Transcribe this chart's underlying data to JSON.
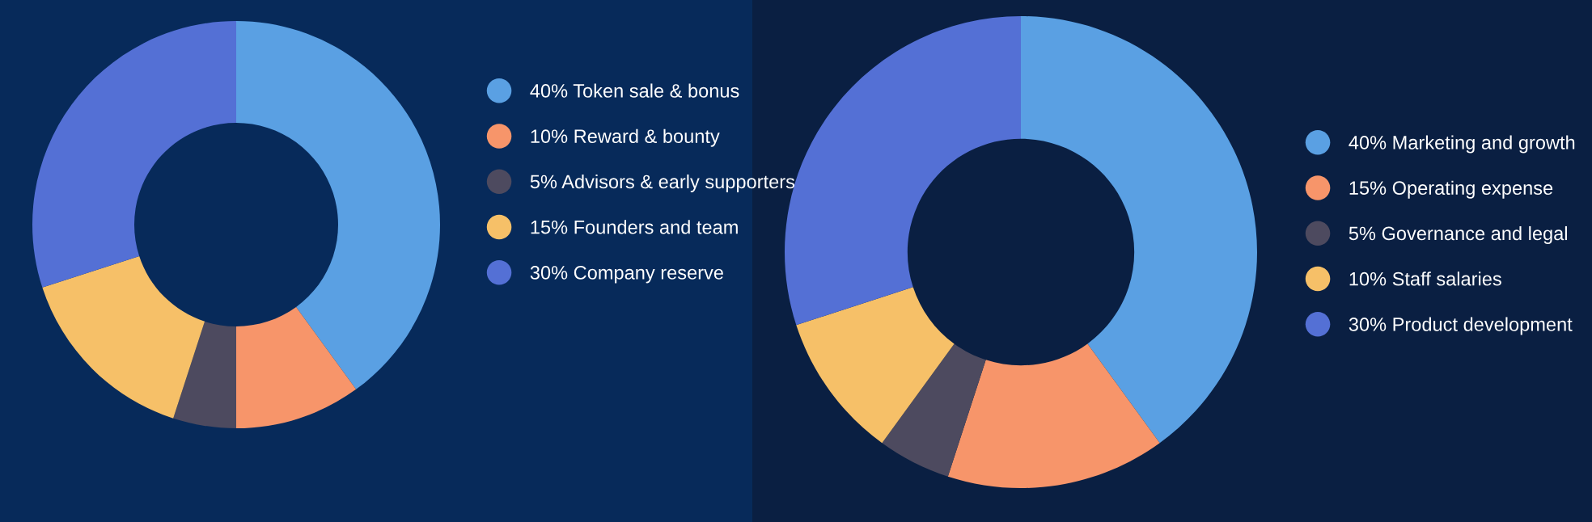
{
  "chart_data": [
    {
      "type": "donut",
      "categories": [
        "40% Token sale & bonus",
        "10% Reward & bounty",
        "5% Advisors & early supporters",
        "15% Founders and team",
        "30% Company reserve"
      ],
      "values": [
        40,
        10,
        5,
        15,
        30
      ],
      "colors": [
        "#5aa0e3",
        "#f7956a",
        "#4d4a5f",
        "#f6c068",
        "#5470d5"
      ],
      "legend": "right"
    },
    {
      "type": "donut",
      "categories": [
        "40% Marketing and growth",
        "15% Operating expense",
        "5% Governance and legal",
        "10% Staff salaries",
        "30% Product development"
      ],
      "values": [
        40,
        15,
        5,
        10,
        30
      ],
      "colors": [
        "#5aa0e3",
        "#f7956a",
        "#4d4a5f",
        "#f6c068",
        "#5470d5"
      ],
      "legend": "right"
    }
  ]
}
